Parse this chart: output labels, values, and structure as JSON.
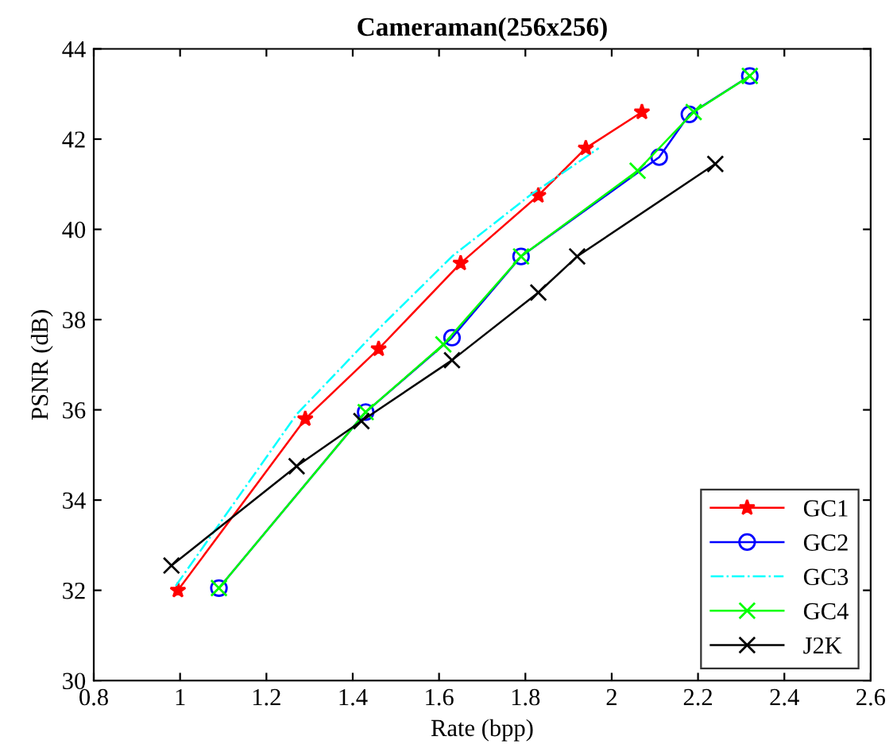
{
  "chart_data": {
    "type": "line",
    "title": "Cameraman(256x256)",
    "xlabel": "Rate (bpp)",
    "ylabel": "PSNR (dB)",
    "xlim": [
      0.8,
      2.6
    ],
    "xticks": [
      0.8,
      1,
      1.2,
      1.4,
      1.6,
      1.8,
      2,
      2.2,
      2.4,
      2.6
    ],
    "ylim": [
      30,
      44
    ],
    "yticks": [
      30,
      32,
      34,
      36,
      38,
      40,
      42,
      44
    ],
    "grid": false,
    "legend": "bottom right",
    "series": [
      {
        "name": "GC1",
        "color": "#ff0000",
        "marker": "star",
        "line_style": "solid",
        "x": [
          0.995,
          1.29,
          1.46,
          1.65,
          1.83,
          1.94,
          2.07
        ],
        "values": [
          32.0,
          35.8,
          37.35,
          39.25,
          40.75,
          41.8,
          42.6
        ]
      },
      {
        "name": "GC2",
        "color": "#0000ff",
        "marker": "circle",
        "line_style": "solid",
        "x": [
          1.09,
          1.43,
          1.63,
          1.79,
          2.11,
          2.18,
          2.32
        ],
        "values": [
          32.05,
          35.95,
          37.6,
          39.4,
          41.6,
          42.55,
          43.4
        ]
      },
      {
        "name": "GC3",
        "color": "#00ffff",
        "marker": "none",
        "line_style": "dashdot",
        "x": [
          0.99,
          1.27,
          1.45,
          1.63,
          1.81,
          1.97
        ],
        "values": [
          32.1,
          35.9,
          37.7,
          39.4,
          40.75,
          41.8
        ]
      },
      {
        "name": "GC4",
        "color": "#00ff00",
        "marker": "cross",
        "line_style": "solid",
        "x": [
          1.09,
          1.43,
          1.61,
          1.79,
          2.06,
          2.19,
          2.32
        ],
        "values": [
          32.05,
          35.95,
          37.45,
          39.4,
          41.3,
          42.6,
          43.4
        ]
      },
      {
        "name": "J2K",
        "color": "#000000",
        "marker": "cross",
        "line_style": "solid",
        "x": [
          0.98,
          1.27,
          1.42,
          1.63,
          1.83,
          1.92,
          2.24
        ],
        "values": [
          32.55,
          34.75,
          35.75,
          37.1,
          38.6,
          39.4,
          41.45
        ]
      }
    ]
  }
}
